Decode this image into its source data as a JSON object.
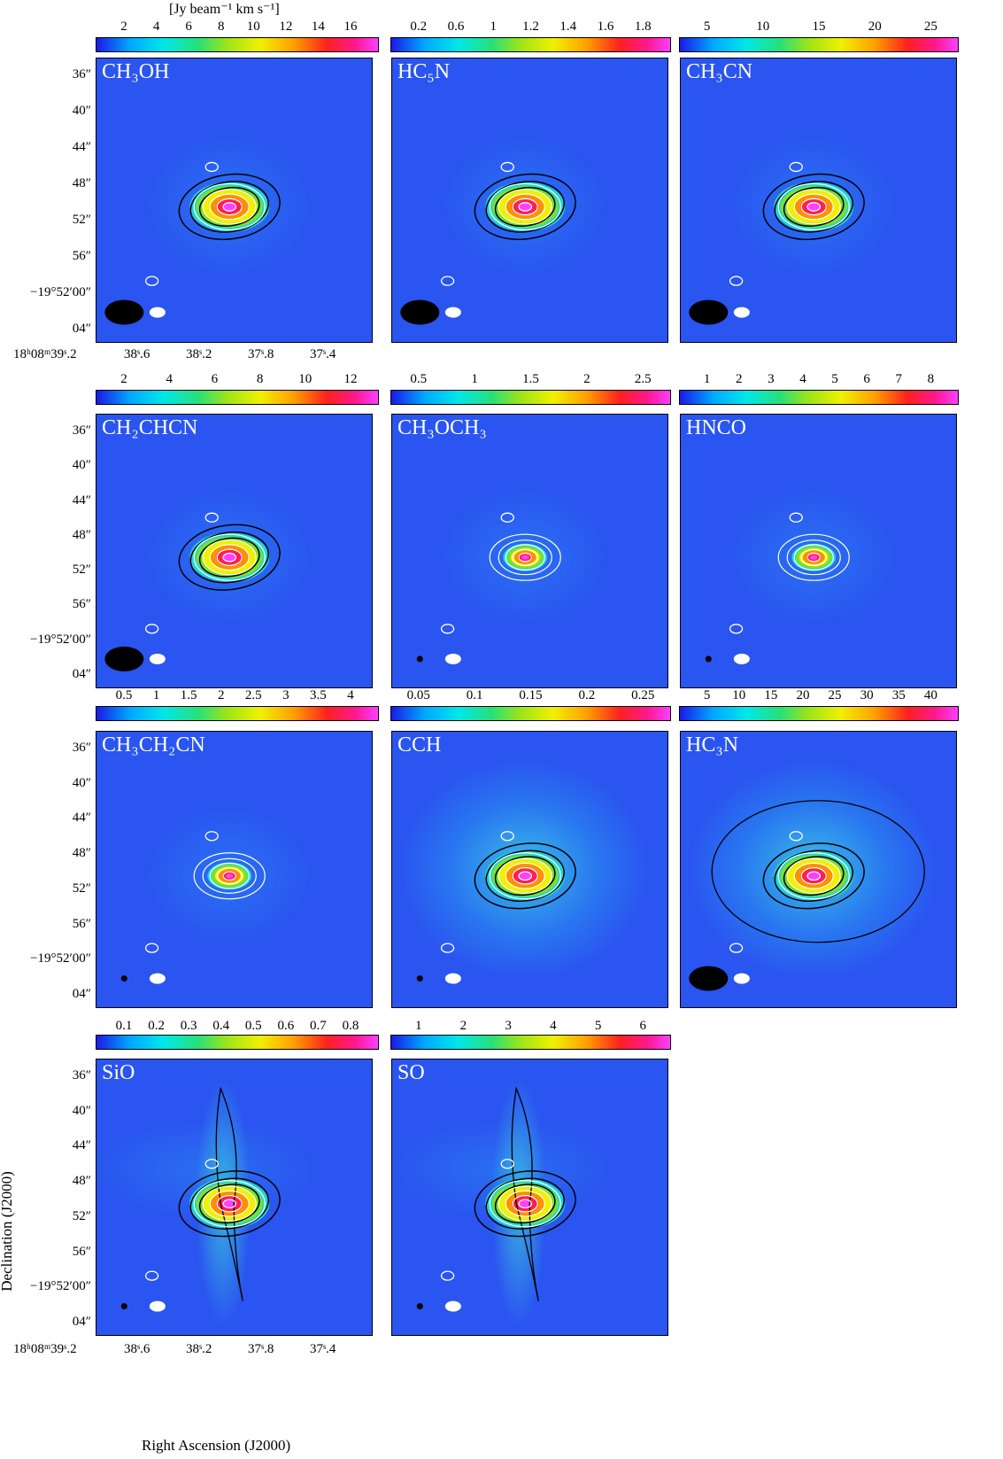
{
  "units_label": "[Jy beam⁻¹ km s⁻¹]",
  "dec_ticks": [
    "36″",
    "40″",
    "44″",
    "48″",
    "52″",
    "56″",
    "−19°52′00″",
    "04″"
  ],
  "ra_ticks": [
    "18ʰ08ᵐ39ˢ.2",
    "38ˢ.6",
    "38ˢ.2",
    "37ˢ.8",
    "37ˢ.4"
  ],
  "x_axis_title": "Right Ascension (J2000)",
  "y_axis_title": "Declination (J2000)",
  "panels": [
    {
      "molecule": "CH₃OH",
      "colorbar_ticks": [
        "2",
        "4",
        "6",
        "8",
        "10",
        "12",
        "14",
        "16"
      ],
      "background": "uniform"
    },
    {
      "molecule": "HC₅N",
      "colorbar_ticks": [
        "0.2",
        "0.6",
        "1",
        "1.2",
        "1.4",
        "1.6",
        "1.8"
      ],
      "background": "uniform"
    },
    {
      "molecule": "CH₃CN",
      "colorbar_ticks": [
        "5",
        "10",
        "15",
        "20",
        "25"
      ],
      "background": "uniform"
    },
    {
      "molecule": "CH₂CHCN",
      "colorbar_ticks": [
        "2",
        "4",
        "6",
        "8",
        "10",
        "12"
      ],
      "background": "uniform"
    },
    {
      "molecule": "CH₃OCH₃",
      "colorbar_ticks": [
        "0.5",
        "1",
        "1.5",
        "2",
        "2.5"
      ],
      "background": "uniform"
    },
    {
      "molecule": "HNCO",
      "colorbar_ticks": [
        "1",
        "2",
        "3",
        "4",
        "5",
        "6",
        "7",
        "8"
      ],
      "background": "uniform"
    },
    {
      "molecule": "CH₃CH₂CN",
      "colorbar_ticks": [
        "0.5",
        "1",
        "1.5",
        "2",
        "2.5",
        "3",
        "3.5",
        "4"
      ],
      "background": "uniform"
    },
    {
      "molecule": "CCH",
      "colorbar_ticks": [
        "0.05",
        "0.1",
        "0.15",
        "0.2",
        "0.25"
      ],
      "background": "extended"
    },
    {
      "molecule": "HC₃N",
      "colorbar_ticks": [
        "5",
        "10",
        "15",
        "20",
        "25",
        "30",
        "35",
        "40"
      ],
      "background": "extended"
    },
    {
      "molecule": "SiO",
      "colorbar_ticks": [
        "0.1",
        "0.2",
        "0.3",
        "0.4",
        "0.5",
        "0.6",
        "0.7",
        "0.8"
      ],
      "background": "outflow"
    },
    {
      "molecule": "SO",
      "colorbar_ticks": [
        "1",
        "2",
        "3",
        "4",
        "5",
        "6"
      ],
      "background": "outflow"
    }
  ],
  "colors": {
    "map_background": "#2a55f0",
    "contour_white": "#ffffff",
    "contour_black": "#000000"
  }
}
